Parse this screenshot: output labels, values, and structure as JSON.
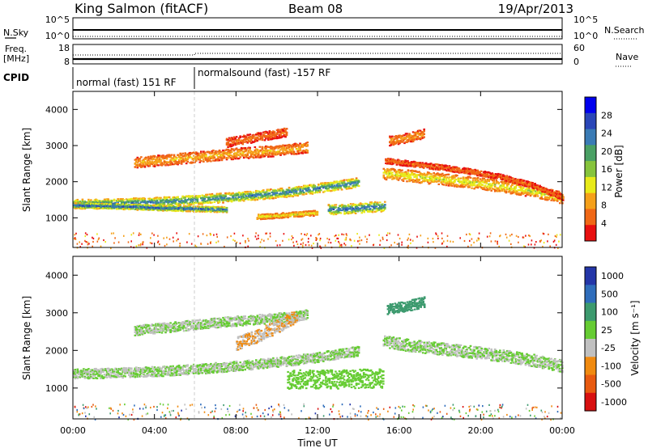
{
  "header": {
    "station": "King Salmon (fitACF)",
    "beam": "Beam 08",
    "date": "19/Apr/2013"
  },
  "status_panels": {
    "nsky": {
      "label": "N.Sky",
      "ticks": [
        "10^5",
        "10^0"
      ]
    },
    "nsearch": {
      "label": "N.Search",
      "ticks": [
        "10^5",
        "10^0"
      ]
    },
    "freq": {
      "label_line1": "Freq.",
      "label_line2": "[MHz]",
      "ticks": [
        "18",
        "8"
      ]
    },
    "nave": {
      "label": "Nave",
      "ticks": [
        "60",
        "0"
      ]
    },
    "cpid": {
      "label": "CPID",
      "segments": [
        {
          "text": "normal (fast) 151 RF"
        },
        {
          "text": "normalsound (fast) -157 RF"
        }
      ]
    }
  },
  "chart_data": [
    {
      "type": "heatmap",
      "title": "",
      "ylabel": "Slant Range [km]",
      "xlabel": "",
      "ylim": [
        180,
        4500
      ],
      "yticks": [
        "4000",
        "3000",
        "2000",
        "1000"
      ],
      "colorbar": {
        "label": "Power [dB]",
        "range": [
          0,
          32
        ],
        "ticks": [
          "28",
          "24",
          "20",
          "16",
          "12",
          "8",
          "4"
        ],
        "colors": [
          "#0000ee",
          "#2a46b8",
          "#3a7bb5",
          "#4aa064",
          "#86c43c",
          "#e8ea19",
          "#f5a01a",
          "#f06816",
          "#e81010"
        ]
      },
      "bands": [
        {
          "x": [
            0,
            1.5,
            3,
            4.5,
            6,
            7.5,
            9,
            10.5,
            11.5,
            12.5,
            14
          ],
          "y": [
            1400,
            1410,
            1440,
            1470,
            1520,
            1580,
            1650,
            1730,
            1800,
            1880,
            2000
          ],
          "width": 260,
          "power": 24
        },
        {
          "x": [
            0,
            2,
            4,
            6,
            7.5
          ],
          "y": [
            1360,
            1340,
            1300,
            1270,
            1250
          ],
          "width": 150,
          "power": 27
        },
        {
          "x": [
            3,
            4.5,
            6,
            7.5,
            9,
            10.5,
            11.5
          ],
          "y": [
            2550,
            2620,
            2700,
            2780,
            2840,
            2900,
            2980
          ],
          "width": 300,
          "power": 10
        },
        {
          "x": [
            12.5,
            13.5,
            14.5,
            15.3
          ],
          "y": [
            1250,
            1270,
            1310,
            1350
          ],
          "width": 280,
          "power": 25
        },
        {
          "x": [
            9,
            10,
            11,
            12
          ],
          "y": [
            1050,
            1080,
            1120,
            1160
          ],
          "width": 140,
          "power": 14
        },
        {
          "x": [
            15.2,
            16.5,
            17.5,
            18.5,
            19.5,
            20.5,
            21.5,
            22.5,
            23.5,
            24
          ],
          "y": [
            2250,
            2180,
            2120,
            2060,
            2000,
            1930,
            1850,
            1760,
            1640,
            1560
          ],
          "width": 320,
          "power": 14
        },
        {
          "x": [
            15.3,
            16.5,
            18,
            19.5,
            21,
            22.5,
            24
          ],
          "y": [
            2600,
            2520,
            2420,
            2300,
            2150,
            1920,
            1580
          ],
          "width": 150,
          "power": 6
        },
        {
          "x": [
            7.5,
            9,
            10.5
          ],
          "y": [
            3100,
            3250,
            3400
          ],
          "width": 250,
          "power": 6
        },
        {
          "x": [
            15.5,
            16.5,
            17.2
          ],
          "y": [
            3150,
            3250,
            3350
          ],
          "width": 260,
          "power": 9
        }
      ]
    },
    {
      "type": "heatmap",
      "title": "",
      "ylabel": "Slant Range [km]",
      "xlabel": "Time UT",
      "ylim": [
        180,
        4500
      ],
      "yticks": [
        "4000",
        "3000",
        "2000",
        "1000"
      ],
      "xticks": [
        "00:00",
        "04:00",
        "08:00",
        "12:00",
        "16:00",
        "20:00",
        "00:00"
      ],
      "colorbar": {
        "label": "Velocity [m s⁻¹]",
        "range": [
          -1200,
          1200
        ],
        "ticks": [
          "1000",
          "500",
          "100",
          "25",
          "-25",
          "-100",
          "-500",
          "-1000"
        ],
        "colors": [
          "#2436a8",
          "#2f6dbb",
          "#3c9a6e",
          "#66cc33",
          "#c0c0c0",
          "#f08a10",
          "#e85a10",
          "#d81010"
        ]
      },
      "bands": [
        {
          "x": [
            0,
            1.5,
            3,
            4.5,
            6,
            7.5,
            9,
            10.5,
            11.5,
            12.5,
            14
          ],
          "y": [
            1400,
            1410,
            1440,
            1470,
            1520,
            1580,
            1650,
            1730,
            1800,
            1880,
            2000
          ],
          "width": 260,
          "velocity": 0
        },
        {
          "x": [
            3,
            4.5,
            6,
            7.5,
            9,
            10.5,
            11.5
          ],
          "y": [
            2550,
            2620,
            2700,
            2780,
            2840,
            2900,
            2980
          ],
          "width": 260,
          "velocity": 0
        },
        {
          "x": [
            10.5,
            12,
            13.5,
            15.2
          ],
          "y": [
            1250,
            1250,
            1260,
            1280
          ],
          "width": 500,
          "velocity": 120
        },
        {
          "x": [
            15.2,
            16.5,
            18,
            19.5,
            21,
            22.5,
            24
          ],
          "y": [
            2250,
            2150,
            2060,
            1980,
            1880,
            1760,
            1600
          ],
          "width": 320,
          "velocity": 0
        },
        {
          "x": [
            8,
            9,
            10,
            11
          ],
          "y": [
            2200,
            2400,
            2650,
            2950
          ],
          "width": 350,
          "velocity": -300
        },
        {
          "x": [
            15.4,
            16.3,
            17.2
          ],
          "y": [
            3100,
            3200,
            3300
          ],
          "width": 280,
          "velocity": 400
        }
      ]
    }
  ]
}
